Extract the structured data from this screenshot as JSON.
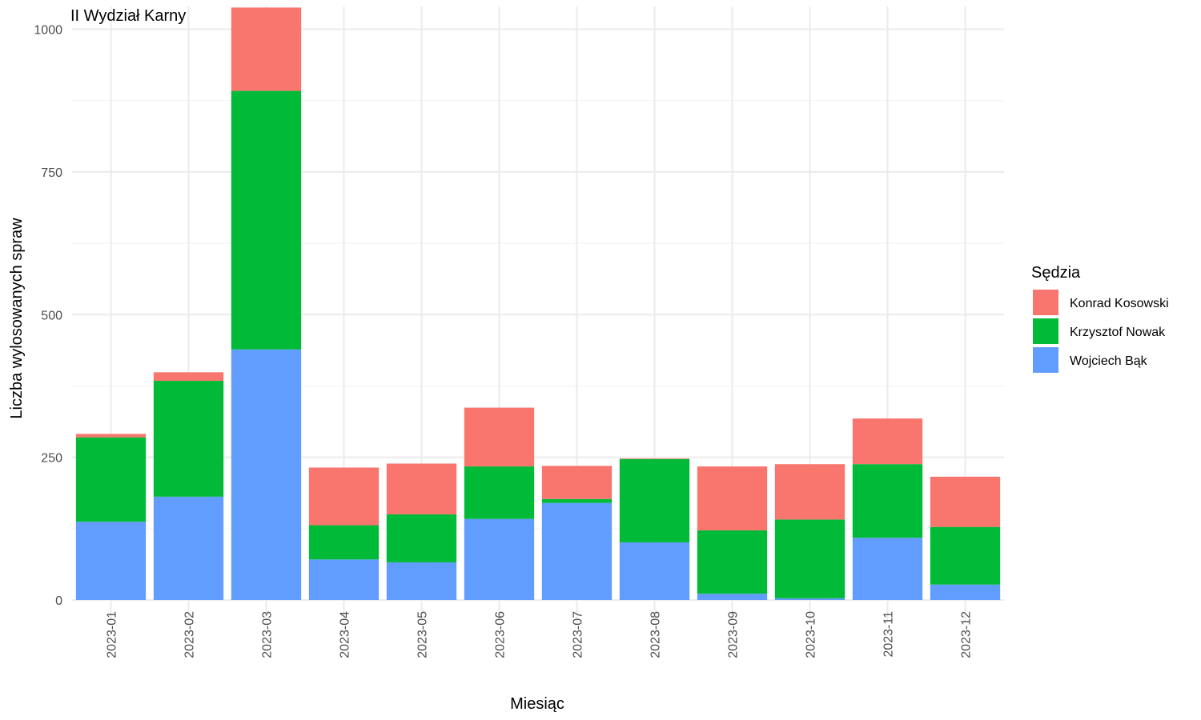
{
  "chart_data": {
    "type": "bar",
    "stacked": true,
    "title": "II Wydział Karny",
    "xlabel": "Miesiąc",
    "ylabel": "Liczba wylosowanych spraw",
    "ylim": [
      0,
      1040
    ],
    "yticks": [
      0,
      250,
      500,
      750,
      1000
    ],
    "grid": true,
    "legend_title": "Sędzia",
    "legend_position": "right",
    "categories": [
      "2023-01",
      "2023-02",
      "2023-03",
      "2023-04",
      "2023-05",
      "2023-06",
      "2023-07",
      "2023-08",
      "2023-09",
      "2023-10",
      "2023-11",
      "2023-12"
    ],
    "series": [
      {
        "name": "Konrad Kosowski",
        "color": "#F8766D",
        "values": [
          6,
          15,
          146,
          101,
          89,
          103,
          58,
          1,
          112,
          97,
          80,
          88
        ]
      },
      {
        "name": "Krzysztof Nowak",
        "color": "#00BA38",
        "values": [
          148,
          203,
          453,
          60,
          84,
          92,
          7,
          146,
          111,
          138,
          129,
          101
        ]
      },
      {
        "name": "Wojciech Bąk",
        "color": "#619CFF",
        "values": [
          137,
          181,
          439,
          71,
          66,
          142,
          170,
          101,
          11,
          3,
          109,
          27
        ]
      }
    ]
  }
}
